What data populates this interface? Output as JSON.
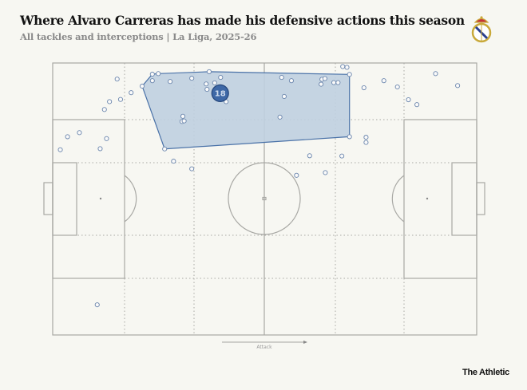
{
  "header": {
    "title": "Where Alvaro Carreras has made his defensive actions this season",
    "subtitle": "All tackles and interceptions | La Liga, 2025-26",
    "logo": "Real Madrid crest"
  },
  "footer": {
    "brand": "The Athletic"
  },
  "colors": {
    "background": "#f7f7f2",
    "lines": "#a8a8a4",
    "hull_fill": "#bfcfe0",
    "hull_stroke": "#4a72a8",
    "badge": "#3e68a6",
    "point_stroke": "#6b86ad"
  },
  "chart_data": {
    "type": "scatter",
    "subtype": "football-pitch-map",
    "xlim": [
      0,
      100
    ],
    "ylim": [
      0,
      100
    ],
    "direction_label": "Attack",
    "points": [
      [
        15.2,
        5.9
      ],
      [
        18.5,
        10.9
      ],
      [
        16.0,
        13.4
      ],
      [
        13.4,
        14.2
      ],
      [
        12.2,
        17.1
      ],
      [
        21.1,
        8.5
      ],
      [
        23.5,
        4.1
      ],
      [
        24.9,
        3.9
      ],
      [
        23.5,
        6.5
      ],
      [
        27.7,
        6.8
      ],
      [
        32.8,
        5.6
      ],
      [
        36.9,
        3.2
      ],
      [
        39.6,
        5.3
      ],
      [
        36.2,
        7.7
      ],
      [
        38.2,
        7.3
      ],
      [
        36.4,
        9.7
      ],
      [
        40.9,
        14.2
      ],
      [
        30.7,
        19.6
      ],
      [
        30.5,
        21.5
      ],
      [
        31.0,
        21.3
      ],
      [
        26.4,
        31.6
      ],
      [
        28.5,
        36.1
      ],
      [
        32.8,
        38.9
      ],
      [
        3.5,
        27.1
      ],
      [
        6.3,
        25.6
      ],
      [
        12.7,
        27.8
      ],
      [
        1.8,
        31.9
      ],
      [
        11.2,
        31.5
      ],
      [
        54.0,
        5.3
      ],
      [
        56.3,
        6.5
      ],
      [
        63.5,
        6.0
      ],
      [
        64.2,
        5.7
      ],
      [
        63.3,
        7.8
      ],
      [
        66.3,
        7.2
      ],
      [
        67.3,
        7.2
      ],
      [
        68.4,
        1.3
      ],
      [
        69.4,
        1.6
      ],
      [
        70.0,
        4.2
      ],
      [
        54.6,
        12.3
      ],
      [
        53.6,
        19.9
      ],
      [
        70.0,
        27.1
      ],
      [
        73.4,
        9.1
      ],
      [
        78.1,
        6.5
      ],
      [
        81.3,
        8.8
      ],
      [
        90.3,
        3.9
      ],
      [
        95.5,
        8.3
      ],
      [
        83.9,
        13.5
      ],
      [
        85.9,
        15.3
      ],
      [
        73.9,
        27.3
      ],
      [
        73.9,
        29.2
      ],
      [
        60.6,
        34.1
      ],
      [
        68.2,
        34.2
      ],
      [
        57.5,
        41.3
      ],
      [
        64.3,
        40.3
      ],
      [
        10.5,
        88.9
      ]
    ],
    "hull": [
      [
        21.1,
        8.5
      ],
      [
        23.5,
        4.1
      ],
      [
        24.9,
        3.9
      ],
      [
        36.9,
        3.2
      ],
      [
        70.0,
        4.2
      ],
      [
        70.0,
        27.1
      ],
      [
        26.4,
        31.6
      ]
    ],
    "average_position": {
      "x": 39.5,
      "y": 11.1,
      "label": "18"
    }
  }
}
